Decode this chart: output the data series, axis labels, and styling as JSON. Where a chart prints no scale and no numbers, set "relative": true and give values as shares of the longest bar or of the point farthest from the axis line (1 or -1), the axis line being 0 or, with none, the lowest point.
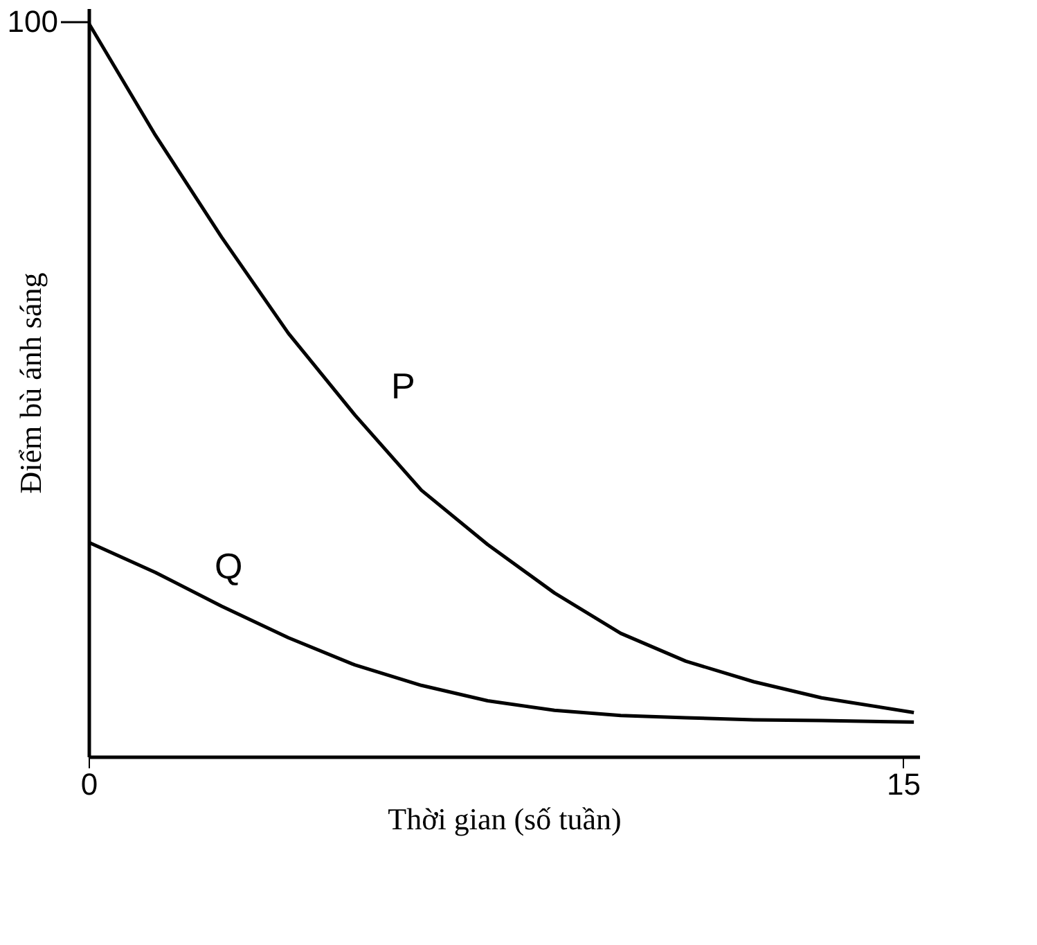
{
  "chart_data": {
    "type": "line",
    "xlabel": "Thời gian (số tuần)",
    "ylabel": "Điểm bù ánh sáng",
    "relative": true,
    "x": [
      0,
      1.23,
      2.45,
      3.68,
      4.9,
      6.13,
      7.35,
      8.58,
      9.8,
      11.0,
      12.25,
      13.5,
      15.2
    ],
    "series": [
      {
        "name": "P",
        "color": "#000000",
        "values": [
          1,
          0.847,
          0.708,
          0.577,
          0.466,
          0.363,
          0.289,
          0.223,
          0.168,
          0.13,
          0.102,
          0.08,
          0.06
        ]
      },
      {
        "name": "Q",
        "color": "#000000",
        "values": [
          0.292,
          0.251,
          0.205,
          0.162,
          0.125,
          0.097,
          0.076,
          0.063,
          0.056,
          0.053,
          0.05,
          0.049,
          0.047
        ]
      }
    ],
    "annotations": [
      "100"
    ],
    "xlim": [
      0,
      15.3
    ],
    "xticks": [
      0,
      15
    ],
    "grid": false,
    "marker": "none",
    "line_style": "solid"
  }
}
